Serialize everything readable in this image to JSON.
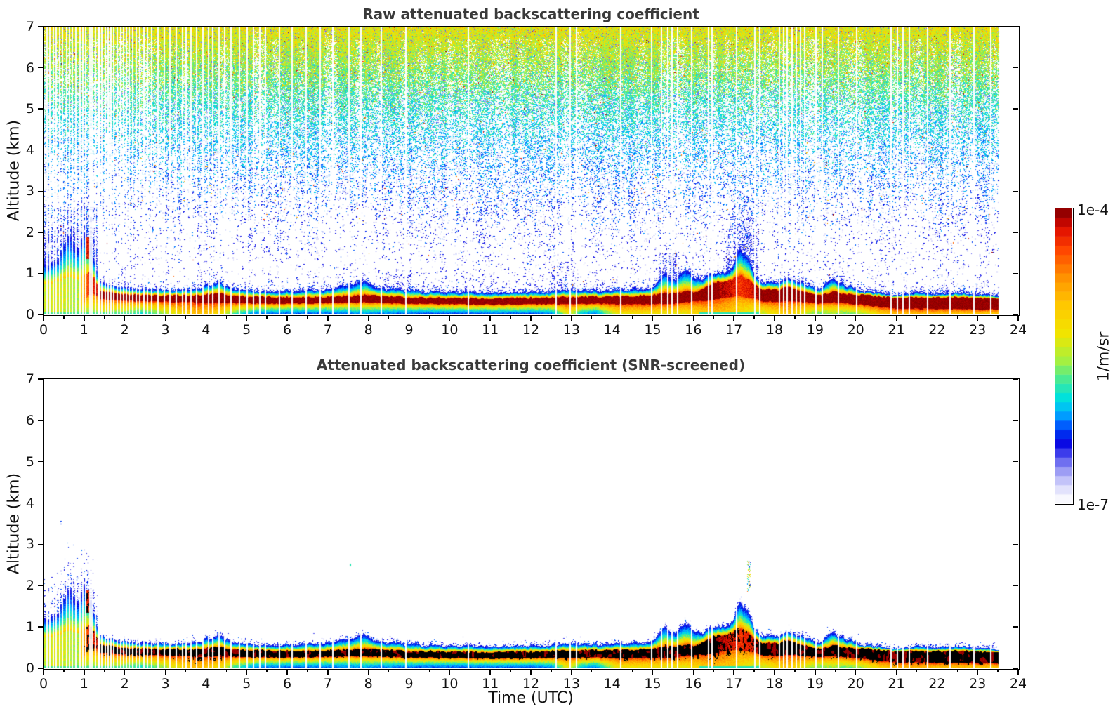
{
  "chart_data": {
    "type": "heatmap",
    "x": {
      "label": "Time (UTC)",
      "lim": [
        0,
        24
      ],
      "ticks": [
        "0",
        "1",
        "2",
        "3",
        "4",
        "5",
        "6",
        "7",
        "8",
        "9",
        "10",
        "11",
        "12",
        "13",
        "14",
        "15",
        "16",
        "17",
        "18",
        "19",
        "20",
        "21",
        "22",
        "23",
        "24"
      ],
      "minor_step": 0.5
    },
    "y": {
      "label": "Altitude (km)",
      "lim": [
        0,
        7
      ],
      "ticks": [
        "0",
        "1",
        "2",
        "3",
        "4",
        "5",
        "6",
        "7"
      ]
    },
    "colorbar": {
      "title": "1/m/sr",
      "max_label": "1e-4",
      "min_label": "1e-7",
      "scale": "log",
      "vmin": 1e-07,
      "vmax": 0.0001,
      "steps": 32,
      "colormap": [
        [
          0.0,
          "#ffffff"
        ],
        [
          0.03,
          "#f2f2fd"
        ],
        [
          0.07,
          "#cdcdfa"
        ],
        [
          0.12,
          "#9191f2"
        ],
        [
          0.16,
          "#5050ee"
        ],
        [
          0.21,
          "#0000e1"
        ],
        [
          0.27,
          "#0064ff"
        ],
        [
          0.31,
          "#00b4ff"
        ],
        [
          0.36,
          "#00e1dc"
        ],
        [
          0.43,
          "#50eb8c"
        ],
        [
          0.49,
          "#aaf03c"
        ],
        [
          0.57,
          "#f0e600"
        ],
        [
          0.67,
          "#ffc800"
        ],
        [
          0.76,
          "#ff9600"
        ],
        [
          0.86,
          "#ff4600"
        ],
        [
          0.93,
          "#e10f00"
        ],
        [
          0.97,
          "#aa0000"
        ],
        [
          1.0,
          "#7f0000"
        ]
      ]
    },
    "panels": [
      {
        "title": "Raw attenuated backscattering coefficient",
        "screened": false
      },
      {
        "title": "Attenuated backscattering coefficient (SNR-screened)",
        "screened": true
      }
    ],
    "data_end_time": 23.52,
    "boundary_layer_keyframes": {
      "columns": [
        "t",
        "top_km",
        "core_top_km",
        "core_bottom_km",
        "core_value",
        "ground_value"
      ],
      "rows": [
        [
          0.0,
          1.15,
          0.72,
          0.06,
          0.6,
          0.8
        ],
        [
          0.35,
          1.3,
          0.8,
          0.06,
          0.63,
          0.78
        ],
        [
          0.6,
          1.9,
          0.92,
          0.06,
          0.6,
          0.68
        ],
        [
          0.85,
          1.55,
          0.85,
          0.08,
          0.58,
          0.62
        ],
        [
          1.0,
          1.9,
          0.95,
          0.3,
          0.78,
          0.58
        ],
        [
          1.12,
          1.8,
          1.05,
          0.48,
          0.92,
          0.56
        ],
        [
          1.28,
          1.15,
          0.85,
          0.5,
          0.92,
          0.56
        ],
        [
          1.4,
          0.78,
          0.56,
          0.38,
          1.0,
          0.56
        ],
        [
          2.0,
          0.64,
          0.5,
          0.34,
          1.0,
          0.52
        ],
        [
          2.4,
          0.6,
          0.47,
          0.32,
          1.0,
          0.45
        ],
        [
          3.0,
          0.6,
          0.46,
          0.31,
          1.0,
          0.56
        ],
        [
          3.5,
          0.62,
          0.46,
          0.3,
          1.0,
          0.68
        ],
        [
          3.8,
          0.63,
          0.46,
          0.28,
          1.0,
          0.72
        ],
        [
          4.3,
          0.8,
          0.52,
          0.28,
          1.0,
          0.66
        ],
        [
          4.7,
          0.62,
          0.46,
          0.28,
          1.0,
          0.5
        ],
        [
          5.2,
          0.57,
          0.43,
          0.27,
          1.0,
          0.36
        ],
        [
          6.0,
          0.56,
          0.42,
          0.26,
          1.0,
          0.33
        ],
        [
          7.0,
          0.6,
          0.43,
          0.28,
          1.0,
          0.34
        ],
        [
          7.9,
          0.78,
          0.47,
          0.3,
          1.0,
          0.38
        ],
        [
          8.4,
          0.62,
          0.44,
          0.28,
          1.0,
          0.35
        ],
        [
          9.0,
          0.57,
          0.41,
          0.26,
          1.0,
          0.33
        ],
        [
          10.0,
          0.54,
          0.4,
          0.25,
          1.0,
          0.32
        ],
        [
          11.0,
          0.52,
          0.39,
          0.24,
          1.0,
          0.33
        ],
        [
          12.0,
          0.54,
          0.4,
          0.25,
          1.0,
          0.33
        ],
        [
          12.5,
          0.56,
          0.41,
          0.25,
          1.0,
          0.35
        ],
        [
          12.9,
          0.6,
          0.43,
          0.26,
          1.0,
          0.62
        ],
        [
          13.3,
          0.58,
          0.43,
          0.26,
          1.0,
          0.4
        ],
        [
          13.6,
          0.57,
          0.43,
          0.26,
          1.0,
          0.35
        ],
        [
          14.0,
          0.58,
          0.44,
          0.25,
          1.0,
          0.58
        ],
        [
          14.3,
          0.58,
          0.44,
          0.25,
          1.0,
          0.64
        ],
        [
          15.0,
          0.62,
          0.47,
          0.25,
          1.0,
          0.64
        ],
        [
          15.3,
          1.05,
          0.52,
          0.26,
          1.0,
          0.62
        ],
        [
          15.55,
          0.82,
          0.5,
          0.27,
          1.0,
          0.62
        ],
        [
          15.8,
          1.1,
          0.55,
          0.3,
          1.0,
          0.62
        ],
        [
          16.1,
          0.85,
          0.55,
          0.32,
          1.0,
          0.66
        ],
        [
          16.5,
          1.0,
          0.78,
          0.36,
          0.98,
          0.72
        ],
        [
          16.9,
          1.05,
          0.82,
          0.42,
          0.95,
          0.7
        ],
        [
          17.15,
          1.6,
          0.95,
          0.45,
          0.9,
          0.65
        ],
        [
          17.35,
          1.4,
          0.85,
          0.42,
          0.92,
          0.62
        ],
        [
          17.5,
          0.95,
          0.72,
          0.38,
          0.95,
          0.58
        ],
        [
          17.7,
          0.8,
          0.62,
          0.32,
          1.0,
          0.58
        ],
        [
          18.1,
          0.78,
          0.6,
          0.3,
          1.0,
          0.66
        ],
        [
          18.35,
          0.92,
          0.68,
          0.32,
          1.0,
          0.7
        ],
        [
          18.6,
          0.8,
          0.58,
          0.3,
          1.0,
          0.62
        ],
        [
          19.1,
          0.62,
          0.46,
          0.27,
          1.0,
          0.52
        ],
        [
          19.45,
          0.88,
          0.56,
          0.3,
          1.0,
          0.56
        ],
        [
          19.7,
          0.72,
          0.5,
          0.28,
          1.0,
          0.52
        ],
        [
          20.1,
          0.6,
          0.48,
          0.24,
          1.0,
          0.55
        ],
        [
          20.6,
          0.52,
          0.44,
          0.18,
          1.0,
          0.66
        ],
        [
          21.0,
          0.47,
          0.4,
          0.14,
          1.0,
          0.72
        ],
        [
          21.5,
          0.52,
          0.42,
          0.14,
          1.0,
          0.72
        ],
        [
          22.0,
          0.5,
          0.41,
          0.13,
          1.0,
          0.7
        ],
        [
          22.6,
          0.52,
          0.42,
          0.13,
          1.0,
          0.7
        ],
        [
          23.0,
          0.48,
          0.4,
          0.12,
          1.0,
          0.68
        ],
        [
          23.52,
          0.46,
          0.38,
          0.12,
          1.0,
          0.68
        ]
      ]
    },
    "features": {
      "clouds": [
        {
          "t0": 1.02,
          "t1": 1.14,
          "a0": 1.35,
          "a1": 1.88,
          "v": 0.93
        }
      ],
      "spike_column": {
        "t0": 17.32,
        "t1": 17.42,
        "a0": 1.85,
        "a1": 2.6
      },
      "isolated_dot": {
        "t": 7.55,
        "a": 2.5,
        "v": 0.5
      },
      "ground_strips": [
        {
          "t0": 0.0,
          "t1": 2.05,
          "h": 0.045,
          "v": 0.52
        },
        {
          "t0": 16.15,
          "t1": 17.65,
          "h": 0.05,
          "v": 0.5
        }
      ],
      "noise_streaks": [
        [
          0.0,
          1.35,
          2.6,
          0.3
        ],
        [
          1.9,
          2.05,
          1.15,
          0.25
        ],
        [
          8.3,
          9.05,
          1.0,
          0.08
        ],
        [
          12.5,
          13.15,
          1.3,
          0.12
        ],
        [
          15.15,
          15.65,
          1.5,
          0.25
        ],
        [
          16.8,
          17.6,
          3.4,
          0.3
        ],
        [
          10.3,
          10.6,
          1.1,
          0.06
        ]
      ]
    },
    "gap_times_utc": [
      0.07,
      0.13,
      0.22,
      0.3,
      0.38,
      0.45,
      0.55,
      0.63,
      0.7,
      0.78,
      0.88,
      0.95,
      1.02,
      1.12,
      1.18,
      1.27,
      1.33,
      1.42,
      1.5,
      1.57,
      1.65,
      1.72,
      1.8,
      1.88,
      1.95,
      2.03,
      2.1,
      2.18,
      2.27,
      2.35,
      2.45,
      2.55,
      2.65,
      2.8,
      2.95,
      3.1,
      3.25,
      3.4,
      3.5,
      3.62,
      3.75,
      3.9,
      4.05,
      4.15,
      4.3,
      4.45,
      4.6,
      4.8,
      5.0,
      5.15,
      5.3,
      5.45,
      5.8,
      6.1,
      6.45,
      6.8,
      7.1,
      7.5,
      7.8,
      8.3,
      8.9,
      10.45,
      12.6,
      12.95,
      13.1,
      14.2,
      14.95,
      15.2,
      15.35,
      15.45,
      15.6,
      15.95,
      16.35,
      16.45,
      17.05,
      17.5,
      17.62,
      18.1,
      18.2,
      18.3,
      18.42,
      18.52,
      18.62,
      18.72,
      19.0,
      19.15,
      19.55,
      20.0,
      20.85,
      21.0,
      21.15,
      21.3,
      21.75,
      22.3,
      22.9,
      23.3
    ]
  }
}
